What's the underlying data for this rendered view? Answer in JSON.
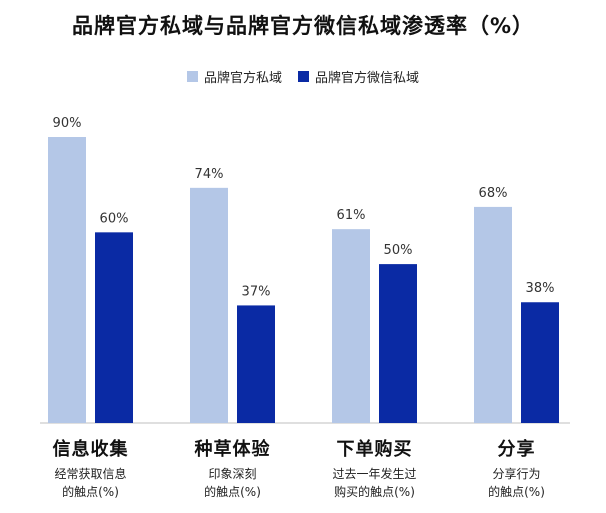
{
  "chart_data": {
    "type": "bar",
    "title": "品牌官方私域与品牌官方微信私域渗透率（%）",
    "categories": [
      "信息收集",
      "种草体验",
      "下单购买",
      "分享"
    ],
    "category_subtitles": [
      "经常获取信息\n的触点(%)",
      "印象深刻\n的触点(%)",
      "过去一年发生过\n购买的触点(%)",
      "分享行为\n的触点(%)"
    ],
    "series": [
      {
        "name": "品牌官方私域",
        "values": [
          90,
          74,
          61,
          68
        ],
        "labels": [
          "90%",
          "74%",
          "61%",
          "68%"
        ],
        "color": "#b4c7e7"
      },
      {
        "name": "品牌官方微信私域",
        "values": [
          60,
          37,
          50,
          38
        ],
        "labels": [
          "60%",
          "37%",
          "50%",
          "38%"
        ],
        "color": "#0a2aa4"
      }
    ],
    "ylim": [
      0,
      90
    ],
    "grid": false,
    "legend_position": "top-center",
    "baseline_color": "#bfbfbf"
  }
}
